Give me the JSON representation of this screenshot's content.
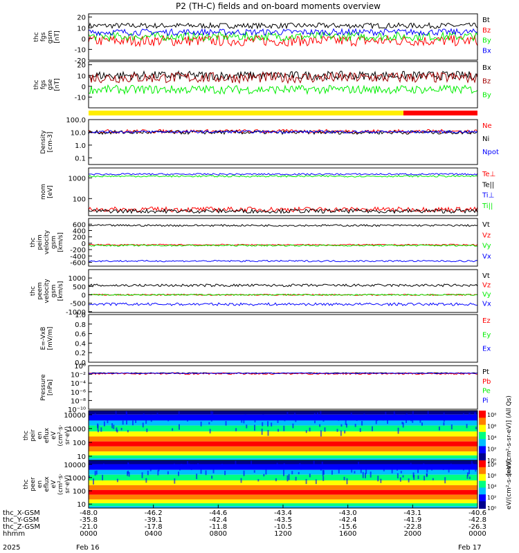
{
  "title": "P2 (TH-C) fields and on-board moments overview",
  "colors": {
    "black": "#000000",
    "red": "#ff0000",
    "green": "#00ee00",
    "blue": "#0000ff",
    "darkred": "#a00000",
    "yellow": "#ffee00"
  },
  "chart_data": [
    {
      "type": "line",
      "ylabel": [
        "thc",
        "fgs",
        "gsm",
        "[nT]"
      ],
      "ylim": [
        -20,
        23
      ],
      "ticks": [
        "20",
        "10",
        "0",
        "-10",
        "-20"
      ],
      "tick_values": [
        20,
        10,
        0,
        -10,
        -20
      ],
      "series": [
        {
          "name": "Bt",
          "color": "black",
          "base": 12,
          "amp": 2.5
        },
        {
          "name": "Bz",
          "color": "red",
          "base": -2,
          "amp": 5
        },
        {
          "name": "By",
          "color": "green",
          "base": 2,
          "amp": 4
        },
        {
          "name": "Bx",
          "color": "blue",
          "base": 6,
          "amp": 3
        }
      ]
    },
    {
      "type": "line",
      "ylabel": [
        "thc",
        "fgs",
        "gse",
        "[nT]"
      ],
      "ylim": [
        -20,
        23
      ],
      "ticks": [
        "20",
        "10",
        "0",
        "-10"
      ],
      "tick_values": [
        20,
        10,
        0,
        -10
      ],
      "series": [
        {
          "name": "Bx",
          "color": "black",
          "base": 10,
          "amp": 4
        },
        {
          "name": "Bz",
          "color": "darkred",
          "base": 8,
          "amp": 5
        },
        {
          "name": "By",
          "color": "green",
          "base": -3,
          "amp": 4
        }
      ]
    },
    {
      "type": "line",
      "log": true,
      "ylabel": [
        "Density",
        "[cm-3]"
      ],
      "ylim": [
        0.03,
        100
      ],
      "ticks": [
        "100.0",
        "10.0",
        "1.0",
        "0.1"
      ],
      "tick_values": [
        100,
        10,
        1,
        0.1
      ],
      "series": [
        {
          "name": "Ne",
          "color": "red",
          "base": 12,
          "amp": 0.15
        },
        {
          "name": "Ni",
          "color": "black",
          "base": 10,
          "amp": 0.15
        },
        {
          "name": "Npot",
          "color": "blue",
          "base": 11,
          "amp": 0.1
        }
      ]
    },
    {
      "type": "line",
      "log": true,
      "ylabel": [
        "mom",
        "[eV]"
      ],
      "ylim": [
        15,
        3000
      ],
      "ticks": [
        "1000",
        "100"
      ],
      "tick_values": [
        1000,
        100
      ],
      "series": [
        {
          "name": "Te⊥",
          "color": "red",
          "base": 30,
          "amp": 0.12
        },
        {
          "name": "Te||",
          "color": "black",
          "base": 25,
          "amp": 0.1
        },
        {
          "name": "Ti⊥",
          "color": "blue",
          "base": 1500,
          "amp": 0.04
        },
        {
          "name": "Ti||",
          "color": "green",
          "base": 1200,
          "amp": 0.04
        }
      ]
    },
    {
      "type": "line",
      "ylabel": [
        "thc",
        "peim",
        "velocity",
        "gsm",
        "[km/s]"
      ],
      "ylim": [
        -720,
        780
      ],
      "ticks": [
        "600",
        "400",
        "200",
        "0",
        "-200",
        "-400",
        "-600"
      ],
      "tick_values": [
        600,
        400,
        200,
        0,
        -200,
        -400,
        -600
      ],
      "series": [
        {
          "name": "Vt",
          "color": "black",
          "base": 560,
          "amp": 30
        },
        {
          "name": "Vz",
          "color": "red",
          "base": -50,
          "amp": 20
        },
        {
          "name": "Vy",
          "color": "green",
          "base": -70,
          "amp": 25
        },
        {
          "name": "Vx",
          "color": "blue",
          "base": -560,
          "amp": 25
        }
      ]
    },
    {
      "type": "line",
      "ylabel": [
        "thc",
        "peem",
        "velocity",
        "gsm",
        "[km/s]"
      ],
      "ylim": [
        -1050,
        1500
      ],
      "ticks": [
        "1000",
        "500",
        "0",
        "-500",
        "-1000"
      ],
      "tick_values": [
        1000,
        500,
        0,
        -500,
        -1000
      ],
      "series": [
        {
          "name": "Vt",
          "color": "black",
          "base": 560,
          "amp": 80
        },
        {
          "name": "Vz",
          "color": "red",
          "base": 0,
          "amp": 40
        },
        {
          "name": "Vy",
          "color": "green",
          "base": 0,
          "amp": 40
        },
        {
          "name": "Vx",
          "color": "blue",
          "base": -560,
          "amp": 80
        }
      ]
    },
    {
      "type": "line",
      "ylabel": [
        "E=-VxB",
        "[mV/m]"
      ],
      "ylim": [
        0,
        1
      ],
      "ticks": [
        "1.0",
        "0.8",
        "0.6",
        "0.4",
        "0.2",
        "0.0"
      ],
      "tick_values": [
        1,
        0.8,
        0.6,
        0.4,
        0.2,
        0
      ],
      "series": [
        {
          "name": "Ez",
          "color": "red"
        },
        {
          "name": "Ey",
          "color": "green"
        },
        {
          "name": "Ex",
          "color": "blue"
        }
      ]
    },
    {
      "type": "line",
      "log": true,
      "ylabel": [
        "Pressure",
        "[nPa]"
      ],
      "ylim": [
        1e-10,
        1
      ],
      "ticks": [
        "10⁰",
        "10⁻²",
        "10⁻⁴",
        "10⁻⁶",
        "10⁻⁸",
        "10⁻¹⁰"
      ],
      "tick_values": [
        1,
        0.01,
        0.0001,
        1e-06,
        1e-08,
        1e-10
      ],
      "series": [
        {
          "name": "Pt",
          "color": "black",
          "base": 0.02,
          "amp": 0.1
        },
        {
          "name": "Pb",
          "color": "red",
          "base": 0.015,
          "amp": 0.2
        },
        {
          "name": "Pe",
          "color": "green"
        },
        {
          "name": "Pi",
          "color": "blue",
          "base": 0.018,
          "amp": 0.1
        }
      ]
    },
    {
      "type": "heatmap",
      "ylabel": [
        "thc",
        "peir",
        "en",
        "eflux",
        "eV",
        "(cm²·s·",
        "sr·eV)"
      ],
      "ylim": [
        5,
        20000
      ],
      "ticks": [
        "10000",
        "1000",
        "100",
        "10"
      ],
      "tick_values": [
        10000,
        1000,
        100,
        10
      ],
      "colorbar_label": "[eV/(cm²-s-sr-eV)] (All Qs)"
    },
    {
      "type": "heatmap",
      "ylabel": [
        "thc",
        "peer",
        "en",
        "eflux",
        "eV",
        "(cm²·s·",
        "sr·eV)"
      ],
      "ylim": [
        5,
        20000
      ],
      "ticks": [
        "10000",
        "1000",
        "100",
        "10"
      ],
      "tick_values": [
        10000,
        1000,
        100,
        10
      ],
      "colorbar_label": "eV/(cm²-s-sr-eV)"
    }
  ],
  "colorbar_ticks": [
    "10⁸",
    "10⁶",
    "10⁴",
    "10²",
    "10⁰"
  ],
  "xaxis": {
    "rows": [
      {
        "label": "thc_X-GSM",
        "values": [
          "-48.0",
          "-46.2",
          "-44.6",
          "-43.4",
          "-43.0",
          "-43.1",
          "-40.6"
        ]
      },
      {
        "label": "thc_Y-GSM",
        "values": [
          "-35.8",
          "-39.1",
          "-42.4",
          "-43.5",
          "-42.4",
          "-41.9",
          "-42.8"
        ]
      },
      {
        "label": "thc_Z-GSM",
        "values": [
          "-21.0",
          "-17.8",
          "-11.8",
          "-10.5",
          "-15.6",
          "-22.8",
          "-26.3"
        ]
      },
      {
        "label": "hhmm",
        "values": [
          "0000",
          "0400",
          "0800",
          "1200",
          "1600",
          "2000",
          "0000"
        ]
      }
    ],
    "year": "2025",
    "start_date": "Feb 16",
    "end_date": "Feb 17"
  }
}
